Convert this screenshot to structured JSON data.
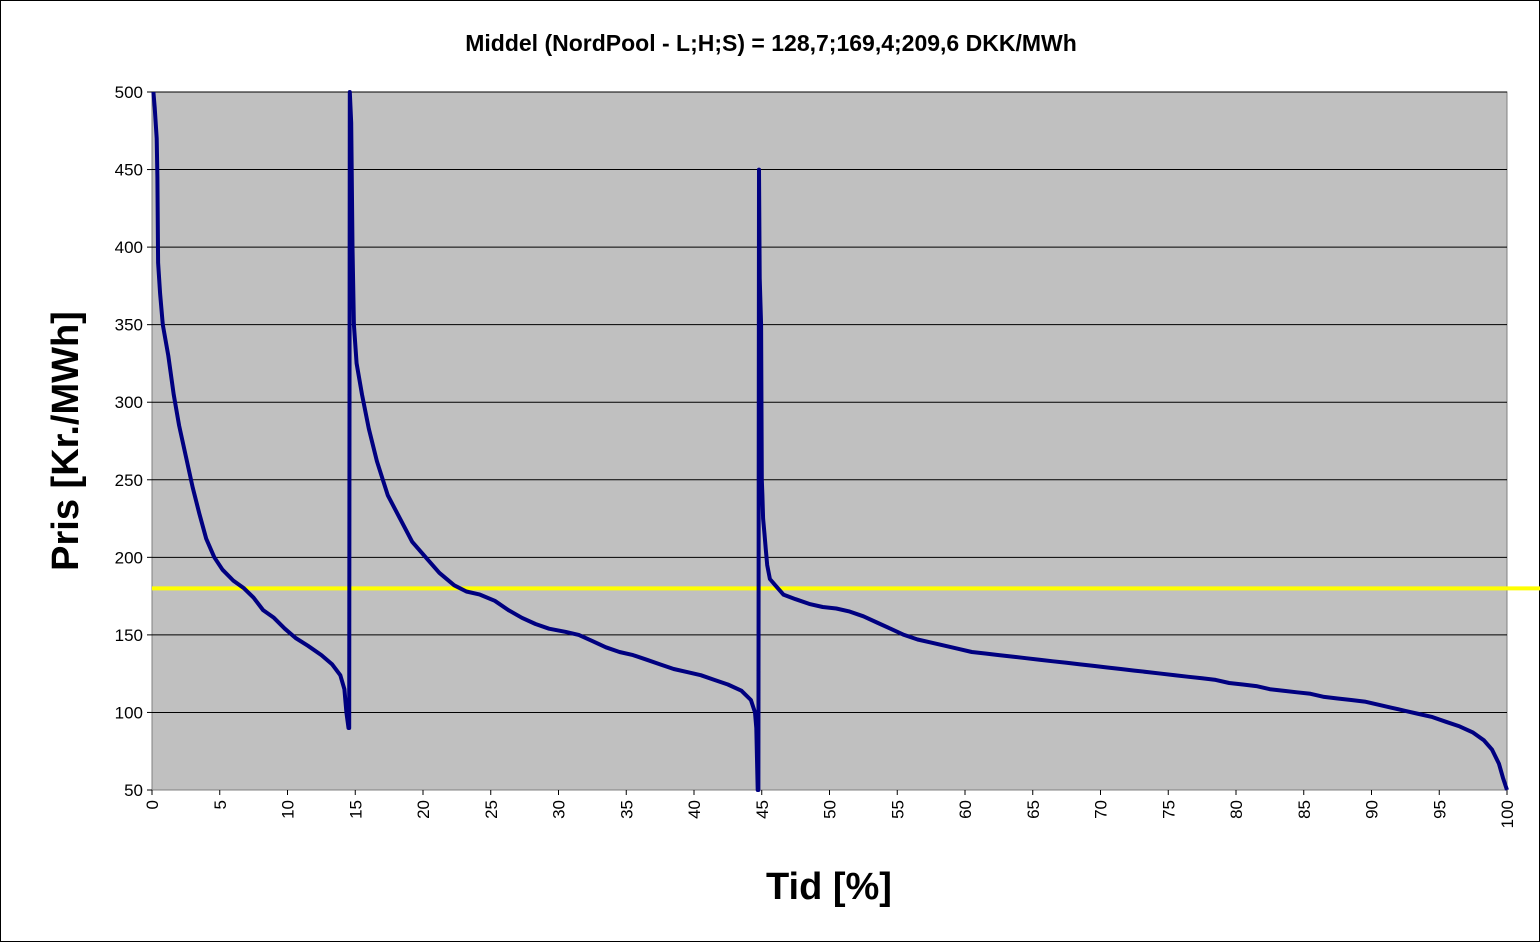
{
  "chart_data": {
    "type": "line",
    "title": "Middel (NordPool - L;H;S) = 128,7;169,4;209,6 DKK/MWh",
    "xlabel": "Tid [%]",
    "ylabel": "Pris [Kr./MWh]",
    "xlim": [
      0,
      100
    ],
    "ylim": [
      50,
      500
    ],
    "x_ticks": [
      "0",
      "5",
      "10",
      "15",
      "20",
      "25",
      "30",
      "35",
      "40",
      "45",
      "50",
      "55",
      "60",
      "65",
      "70",
      "75",
      "80",
      "85",
      "90",
      "95",
      "100"
    ],
    "y_ticks": [
      "50",
      "100",
      "150",
      "200",
      "250",
      "300",
      "350",
      "400",
      "450",
      "500"
    ],
    "grid": "horizontal",
    "reference_line": {
      "y": 180,
      "color": "#ffff00"
    },
    "series": [
      {
        "color": "#000080",
        "points": [
          [
            0.1,
            500
          ],
          [
            0.2,
            490
          ],
          [
            0.35,
            470
          ],
          [
            0.4,
            445
          ],
          [
            0.45,
            390
          ],
          [
            0.6,
            370
          ],
          [
            0.8,
            350
          ],
          [
            1.2,
            330
          ],
          [
            1.6,
            305
          ],
          [
            2.0,
            285
          ],
          [
            2.5,
            265
          ],
          [
            3.0,
            245
          ],
          [
            3.5,
            228
          ],
          [
            4.0,
            212
          ],
          [
            4.6,
            200
          ],
          [
            5.2,
            192
          ],
          [
            6.0,
            185
          ],
          [
            6.8,
            180
          ],
          [
            7.5,
            174
          ],
          [
            8.2,
            166
          ],
          [
            9.0,
            161
          ],
          [
            9.8,
            154
          ],
          [
            10.6,
            148
          ],
          [
            11.5,
            143
          ],
          [
            12.5,
            137
          ],
          [
            13.3,
            131
          ],
          [
            13.9,
            124
          ],
          [
            14.2,
            115
          ],
          [
            14.35,
            100
          ],
          [
            14.5,
            90
          ],
          [
            14.55,
            90
          ],
          [
            14.6,
            500
          ],
          [
            14.7,
            480
          ],
          [
            14.8,
            400
          ],
          [
            14.9,
            350
          ],
          [
            15.1,
            325
          ],
          [
            15.5,
            305
          ],
          [
            16.0,
            283
          ],
          [
            16.6,
            262
          ],
          [
            17.4,
            240
          ],
          [
            18.3,
            225
          ],
          [
            19.2,
            210
          ],
          [
            20.2,
            200
          ],
          [
            21.2,
            190
          ],
          [
            22.3,
            182
          ],
          [
            23.2,
            178
          ],
          [
            24.2,
            176
          ],
          [
            25.3,
            172
          ],
          [
            26.3,
            166
          ],
          [
            27.3,
            161
          ],
          [
            28.3,
            157
          ],
          [
            29.3,
            154
          ],
          [
            30.5,
            152
          ],
          [
            31.5,
            150
          ],
          [
            32.5,
            146
          ],
          [
            33.5,
            142
          ],
          [
            34.5,
            139
          ],
          [
            35.5,
            137
          ],
          [
            36.5,
            134
          ],
          [
            37.5,
            131
          ],
          [
            38.5,
            128
          ],
          [
            39.5,
            126
          ],
          [
            40.5,
            124
          ],
          [
            41.5,
            121
          ],
          [
            42.5,
            118
          ],
          [
            43.5,
            114
          ],
          [
            44.2,
            108
          ],
          [
            44.5,
            100
          ],
          [
            44.6,
            90
          ],
          [
            44.7,
            50
          ],
          [
            44.75,
            50
          ],
          [
            44.8,
            450
          ],
          [
            44.85,
            380
          ],
          [
            44.95,
            350
          ],
          [
            45.0,
            250
          ],
          [
            45.05,
            240
          ],
          [
            45.1,
            225
          ],
          [
            45.2,
            215
          ],
          [
            45.3,
            205
          ],
          [
            45.4,
            195
          ],
          [
            45.6,
            186
          ],
          [
            46.0,
            182
          ],
          [
            46.6,
            176
          ],
          [
            47.5,
            173
          ],
          [
            48.5,
            170
          ],
          [
            49.5,
            168
          ],
          [
            50.5,
            167
          ],
          [
            51.5,
            165
          ],
          [
            52.5,
            162
          ],
          [
            53.5,
            158
          ],
          [
            54.5,
            154
          ],
          [
            55.5,
            150
          ],
          [
            56.5,
            147
          ],
          [
            57.5,
            145
          ],
          [
            58.5,
            143
          ],
          [
            59.5,
            141
          ],
          [
            60.5,
            139
          ],
          [
            61.5,
            138
          ],
          [
            62.5,
            137
          ],
          [
            63.5,
            136
          ],
          [
            64.5,
            135
          ],
          [
            65.5,
            134
          ],
          [
            66.5,
            133
          ],
          [
            67.5,
            132
          ],
          [
            68.5,
            131
          ],
          [
            69.5,
            130
          ],
          [
            70.5,
            129
          ],
          [
            71.5,
            128
          ],
          [
            72.5,
            127
          ],
          [
            73.5,
            126
          ],
          [
            74.5,
            125
          ],
          [
            75.5,
            124
          ],
          [
            76.5,
            123
          ],
          [
            77.5,
            122
          ],
          [
            78.5,
            121
          ],
          [
            79.5,
            119
          ],
          [
            80.5,
            118
          ],
          [
            81.5,
            117
          ],
          [
            82.5,
            115
          ],
          [
            83.5,
            114
          ],
          [
            84.5,
            113
          ],
          [
            85.5,
            112
          ],
          [
            86.5,
            110
          ],
          [
            87.5,
            109
          ],
          [
            88.5,
            108
          ],
          [
            89.5,
            107
          ],
          [
            90.5,
            105
          ],
          [
            91.5,
            103
          ],
          [
            92.5,
            101
          ],
          [
            93.5,
            99
          ],
          [
            94.5,
            97
          ],
          [
            95.5,
            94
          ],
          [
            96.5,
            91
          ],
          [
            97.5,
            87
          ],
          [
            98.3,
            82
          ],
          [
            98.9,
            76
          ],
          [
            99.4,
            67
          ],
          [
            99.7,
            58
          ],
          [
            100,
            50
          ]
        ]
      }
    ]
  }
}
